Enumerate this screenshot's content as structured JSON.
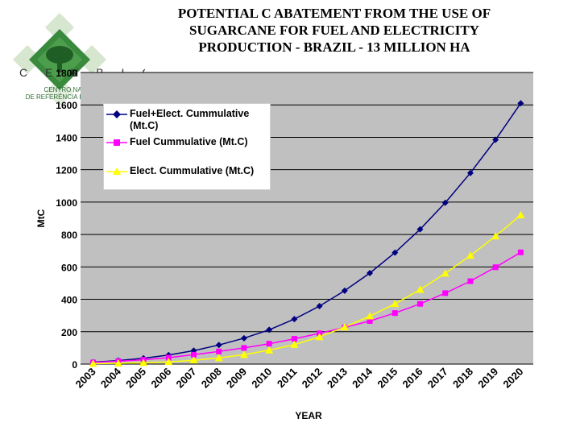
{
  "title": "POTENTIAL C ABATEMENT FROM THE USE OF SUGARCANE FOR FUEL AND ELECTRICITY PRODUCTION - BRAZIL - 13 MILLION HA",
  "logo": {
    "letters": "C E N B I O",
    "subtitle": "CENTRO NACIONAL\nDE REFERÊNCIA EM BIOMASSA",
    "colors": {
      "green": "#3a8a3e",
      "light": "#c9dcc2"
    }
  },
  "chart_data": {
    "type": "line",
    "title": "",
    "xlabel": "YEAR",
    "ylabel": "MtC",
    "ylim": [
      0,
      1800
    ],
    "yticks": [
      0,
      200,
      400,
      600,
      800,
      1000,
      1200,
      1400,
      1600,
      1800
    ],
    "categories": [
      "2003",
      "2004",
      "2005",
      "2006",
      "2007",
      "2008",
      "2009",
      "2010",
      "2011",
      "2012",
      "2013",
      "2014",
      "2015",
      "2016",
      "2017",
      "2018",
      "2019",
      "2020"
    ],
    "legend_position": "top-left",
    "plot_background": "#c0c0c0",
    "series": [
      {
        "name": "Fuel+Elect. Cummulative (Mt.C)",
        "marker": "diamond",
        "color": "#000080",
        "values": [
          12,
          22,
          36,
          56,
          83,
          118,
          160,
          212,
          278,
          358,
          453,
          562,
          688,
          832,
          996,
          1180,
          1385,
          1610
        ]
      },
      {
        "name": "Fuel Cummulative (Mt.C)",
        "marker": "square",
        "color": "#ff00ff",
        "values": [
          10,
          18,
          27,
          40,
          58,
          78,
          100,
          126,
          156,
          190,
          226,
          266,
          315,
          372,
          438,
          512,
          598,
          690
        ]
      },
      {
        "name": "Elect. Cummulative (Mt.C)",
        "marker": "triangle",
        "color": "#ffff00",
        "values": [
          3,
          5,
          8,
          14,
          24,
          38,
          58,
          86,
          120,
          168,
          228,
          296,
          372,
          460,
          560,
          670,
          790,
          920
        ]
      }
    ]
  }
}
